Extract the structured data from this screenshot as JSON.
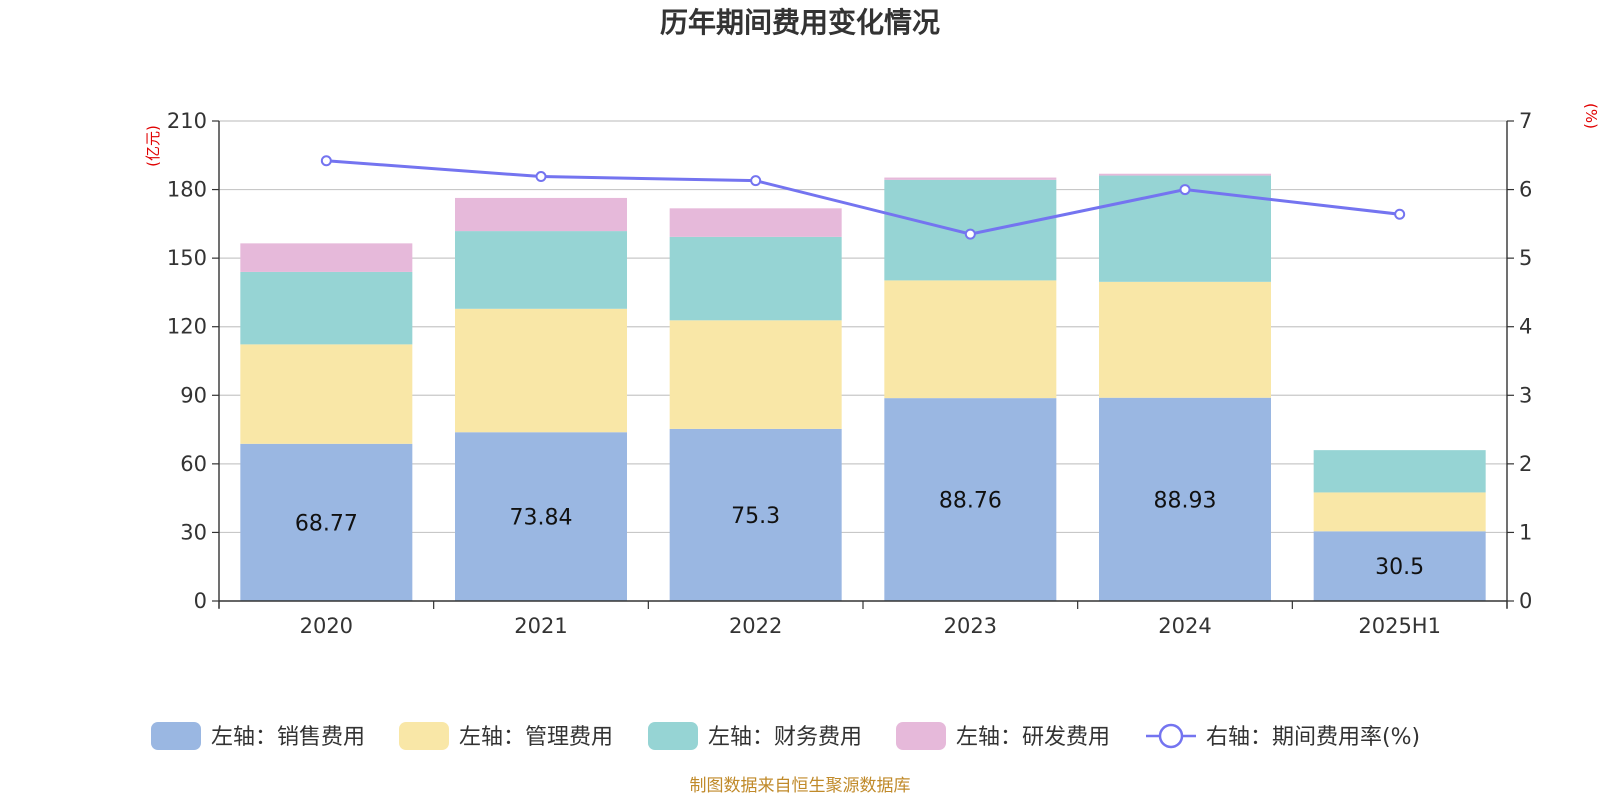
{
  "chart_data": {
    "type": "bar",
    "title": "历年期间费用变化情况",
    "categories": [
      "2020",
      "2021",
      "2022",
      "2023",
      "2024",
      "2025H1"
    ],
    "y_left": {
      "unit_label": "(亿元)",
      "ylim": [
        0,
        210
      ],
      "ticks": [
        0,
        30,
        60,
        90,
        120,
        150,
        180,
        210
      ]
    },
    "y_right": {
      "unit_label": "(%)",
      "ylim": [
        0,
        7
      ],
      "ticks": [
        0,
        1,
        2,
        3,
        4,
        5,
        6,
        7
      ]
    },
    "grid": true,
    "stacked": true,
    "series": [
      {
        "name": "左轴：销售费用",
        "axis": "left",
        "kind": "bar",
        "color": "#9ab7e2",
        "values": [
          68.77,
          73.84,
          75.3,
          88.76,
          88.93,
          30.5
        ],
        "show_labels": true
      },
      {
        "name": "左轴：管理费用",
        "axis": "left",
        "kind": "bar",
        "color": "#f9e7a7",
        "values": [
          43.5,
          54.0,
          47.5,
          51.5,
          50.7,
          17.0
        ]
      },
      {
        "name": "左轴：财务费用",
        "axis": "left",
        "kind": "bar",
        "color": "#96d4d4",
        "values": [
          31.7,
          34.0,
          36.5,
          44.0,
          46.5,
          18.5
        ]
      },
      {
        "name": "左轴：研发费用",
        "axis": "left",
        "kind": "bar",
        "color": "#e6b9da",
        "values": [
          12.5,
          14.5,
          12.5,
          1.0,
          0.8,
          0
        ]
      },
      {
        "name": "右轴：期间费用率(%)",
        "axis": "right",
        "kind": "line",
        "color": "#7474f0",
        "values": [
          6.42,
          6.19,
          6.13,
          5.35,
          6.0,
          5.64
        ]
      }
    ],
    "legend_position": "bottom",
    "source": "制图数据来自恒生聚源数据库"
  }
}
